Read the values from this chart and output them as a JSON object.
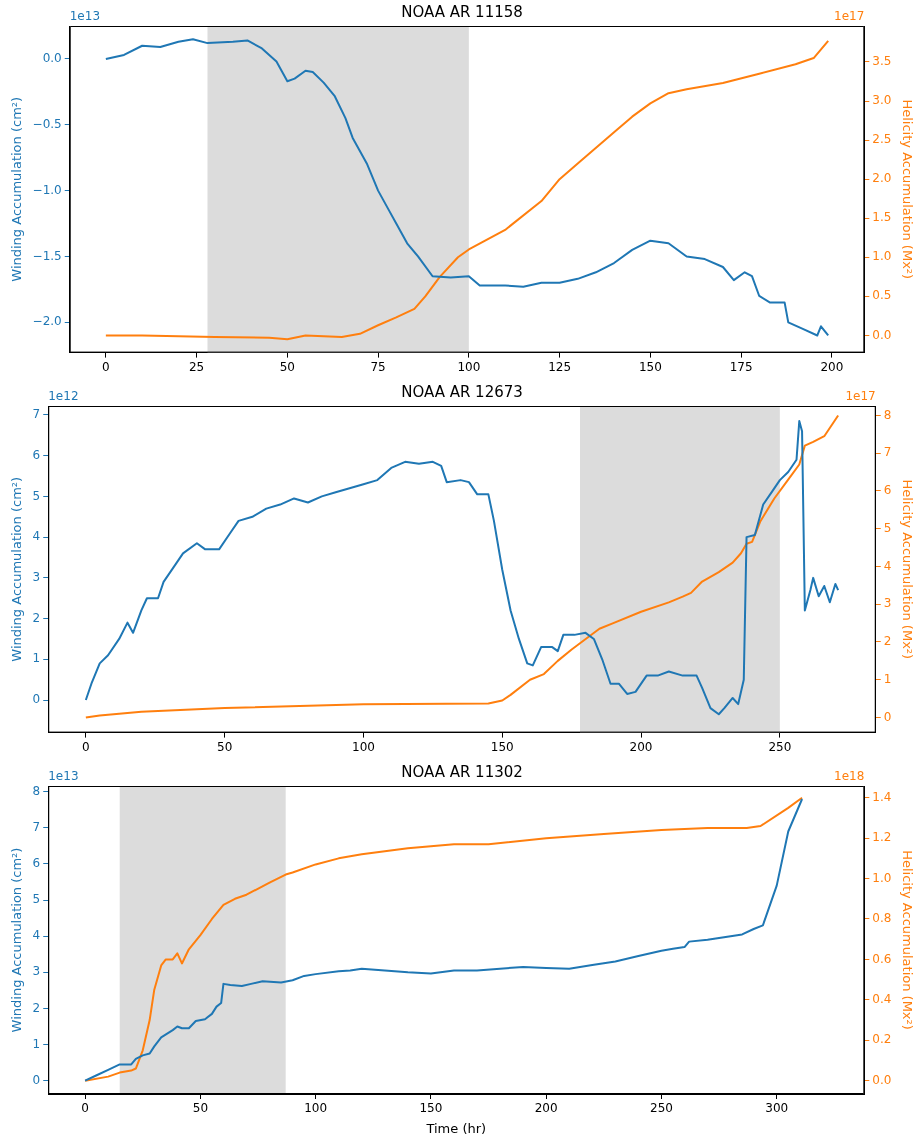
{
  "chart_data": [
    {
      "type": "line",
      "title": "NOAA AR 11158",
      "ylabel": "Winding Accumulation (cm²)",
      "y2label": "Helicity Accumulation (Mx²)",
      "annotations": [
        "1e13",
        "1e17"
      ],
      "marker": "none",
      "xlim": [
        -9.95,
        208.95
      ],
      "xticks": [
        0,
        25,
        50,
        75,
        100,
        125,
        150,
        175,
        200
      ],
      "ylim": [
        -2.23,
        0.25
      ],
      "yticks": [
        {
          "value": -2,
          "label": "−2.0"
        },
        {
          "value": -1.5,
          "label": "−1.5"
        },
        {
          "value": -1,
          "label": "−1.0"
        },
        {
          "value": -0.5,
          "label": "−0.5"
        },
        {
          "value": 0,
          "label": "0.0"
        }
      ],
      "y2lim": [
        -0.22,
        3.96
      ],
      "y2ticks": [
        {
          "value": 0,
          "label": "0.0"
        },
        0.5,
        {
          "value": 1,
          "label": "1.0"
        },
        1.5,
        {
          "value": 2,
          "label": "2.0"
        },
        2.5,
        {
          "value": 3,
          "label": "3.0"
        },
        3.5
      ],
      "bands": [
        {
          "axis": "x",
          "from": 28,
          "to": 100,
          "color": "#dcdcdc"
        }
      ],
      "series": [
        {
          "color": "#1f77b4",
          "x": [
            0,
            5,
            10,
            15,
            20,
            24,
            28,
            35,
            39,
            43,
            47,
            50,
            52,
            55,
            57,
            60,
            63,
            66,
            68,
            72,
            75,
            78,
            80,
            83,
            86,
            90,
            95,
            100,
            103,
            110,
            115,
            120,
            125,
            130,
            135,
            140,
            145,
            150,
            155,
            160,
            165,
            170,
            173,
            176,
            178,
            180,
            183,
            187,
            188,
            192,
            196,
            197,
            199
          ],
          "values": [
            0,
            0.03,
            0.1,
            0.09,
            0.13,
            0.15,
            0.12,
            0.13,
            0.14,
            0.08,
            -0.02,
            -0.17,
            -0.15,
            -0.09,
            -0.1,
            -0.18,
            -0.28,
            -0.45,
            -0.6,
            -0.8,
            -1,
            -1.15,
            -1.25,
            -1.4,
            -1.5,
            -1.65,
            -1.66,
            -1.65,
            -1.72,
            -1.72,
            -1.73,
            -1.7,
            -1.7,
            -1.67,
            -1.62,
            -1.55,
            -1.45,
            -1.38,
            -1.4,
            -1.5,
            -1.52,
            -1.58,
            -1.68,
            -1.62,
            -1.65,
            -1.8,
            -1.85,
            -1.85,
            -2,
            -2.05,
            -2.1,
            -2.03,
            -2.1
          ]
        },
        {
          "color": "#ff7f0e",
          "axis": "y2",
          "x": [
            0,
            10,
            30,
            45,
            50,
            55,
            60,
            65,
            70,
            75,
            80,
            85,
            88,
            92,
            97,
            100,
            110,
            120,
            125,
            130,
            140,
            145,
            150,
            155,
            160,
            170,
            180,
            190,
            195,
            199
          ],
          "values": [
            0,
            0,
            -0.02,
            -0.03,
            -0.05,
            0,
            -0.01,
            -0.02,
            0.02,
            0.13,
            0.23,
            0.34,
            0.5,
            0.75,
            1,
            1.1,
            1.35,
            1.72,
            2,
            2.2,
            2.6,
            2.8,
            2.97,
            3.1,
            3.15,
            3.23,
            3.35,
            3.47,
            3.55,
            3.77
          ]
        }
      ]
    },
    {
      "type": "line",
      "title": "NOAA AR 12673",
      "ylabel": "Winding Accumulation (cm²)",
      "y2label": "Helicity Accumulation (Mx²)",
      "annotations": [
        "1e12",
        "1e17"
      ],
      "marker": "none",
      "xlim": [
        -13.55,
        284.55
      ],
      "xticks": [
        0,
        50,
        100,
        150,
        200,
        250
      ],
      "ylim": [
        -0.8,
        7.22
      ],
      "yticks": [
        0,
        1,
        2,
        3,
        4,
        5,
        6,
        7
      ],
      "y2lim": [
        -0.4,
        8.25
      ],
      "y2ticks": [
        0,
        1,
        2,
        3,
        4,
        5,
        6,
        7,
        8
      ],
      "bands": [
        {
          "axis": "x",
          "from": 178,
          "to": 250,
          "color": "#dcdcdc"
        }
      ],
      "series": [
        {
          "color": "#1f77b4",
          "x": [
            0,
            2,
            5,
            8,
            12,
            15,
            17,
            20,
            22,
            26,
            28,
            32,
            35,
            40,
            43,
            48,
            52,
            55,
            60,
            65,
            70,
            75,
            80,
            85,
            90,
            95,
            100,
            105,
            110,
            115,
            120,
            125,
            128,
            130,
            135,
            138,
            141,
            145,
            147,
            150,
            153,
            156,
            159,
            161,
            164,
            168,
            170,
            172,
            176,
            180,
            183,
            186,
            189,
            192,
            195,
            198,
            202,
            206,
            210,
            215,
            220,
            222,
            225,
            228,
            230,
            233,
            235,
            237,
            238,
            241,
            244,
            247,
            250,
            253,
            256,
            257,
            258,
            259,
            261,
            262,
            264,
            266,
            268,
            270,
            271
          ],
          "values": [
            0,
            0.4,
            0.9,
            1.1,
            1.5,
            1.9,
            1.65,
            2.2,
            2.5,
            2.5,
            2.9,
            3.3,
            3.6,
            3.85,
            3.7,
            3.7,
            4.1,
            4.4,
            4.5,
            4.7,
            4.8,
            4.95,
            4.85,
            5,
            5.1,
            5.2,
            5.3,
            5.4,
            5.7,
            5.85,
            5.8,
            5.85,
            5.75,
            5.35,
            5.4,
            5.35,
            5.05,
            5.05,
            4.4,
            3.2,
            2.2,
            1.5,
            0.9,
            0.85,
            1.3,
            1.3,
            1.2,
            1.6,
            1.6,
            1.65,
            1.5,
            1,
            0.4,
            0.4,
            0.15,
            0.2,
            0.6,
            0.6,
            0.7,
            0.6,
            0.6,
            0.3,
            -0.2,
            -0.35,
            -0.2,
            0.05,
            -0.1,
            0.5,
            4,
            4.05,
            4.8,
            5.1,
            5.4,
            5.6,
            5.9,
            6.85,
            6.6,
            2.2,
            2.7,
            3,
            2.55,
            2.8,
            2.4,
            2.85,
            2.7
          ]
        },
        {
          "color": "#ff7f0e",
          "axis": "y2",
          "x": [
            0,
            5,
            20,
            50,
            100,
            145,
            150,
            153,
            160,
            165,
            170,
            175,
            185,
            190,
            200,
            210,
            215,
            218,
            222,
            228,
            233,
            236,
            238,
            240,
            243,
            248,
            253,
            257,
            259,
            262,
            266,
            271
          ],
          "values": [
            0,
            0.05,
            0.15,
            0.25,
            0.35,
            0.37,
            0.45,
            0.6,
            1,
            1.15,
            1.5,
            1.8,
            2.35,
            2.5,
            2.8,
            3.05,
            3.2,
            3.3,
            3.6,
            3.85,
            4.1,
            4.35,
            4.6,
            4.65,
            5.2,
            5.8,
            6.3,
            6.7,
            7.2,
            7.3,
            7.45,
            8
          ]
        }
      ]
    },
    {
      "type": "line",
      "title": "NOAA AR 11302",
      "xlabel": "Time (hr)",
      "ylabel": "Winding Accumulation (cm²)",
      "y2label": "Helicity Accumulation (Mx²)",
      "annotations": [
        "1e13",
        "1e18"
      ],
      "marker": "none",
      "xlim": [
        -16,
        338
      ],
      "xticks": [
        0,
        50,
        100,
        150,
        200,
        250,
        300
      ],
      "ylim": [
        -0.37,
        8.16
      ],
      "yticks": [
        0,
        1,
        2,
        3,
        4,
        5,
        6,
        7,
        8
      ],
      "y2lim": [
        -0.066,
        1.458
      ],
      "y2ticks": [
        {
          "value": 0,
          "label": "0.0"
        },
        0.2,
        0.4,
        0.6,
        0.8,
        {
          "value": 1,
          "label": "1.0"
        },
        1.2,
        1.4
      ],
      "bands": [
        {
          "axis": "x",
          "from": 15,
          "to": 87,
          "color": "#dcdcdc"
        }
      ],
      "series": [
        {
          "color": "#1f77b4",
          "x": [
            0,
            5,
            10,
            15,
            20,
            22,
            25,
            28,
            30,
            33,
            38,
            40,
            42,
            45,
            48,
            52,
            55,
            57,
            59,
            60,
            63,
            68,
            72,
            77,
            85,
            90,
            95,
            100,
            110,
            115,
            120,
            130,
            140,
            150,
            160,
            170,
            180,
            190,
            200,
            210,
            220,
            230,
            240,
            250,
            255,
            260,
            262,
            270,
            280,
            285,
            290,
            294,
            300,
            305,
            311
          ],
          "values": [
            0,
            0.15,
            0.3,
            0.45,
            0.45,
            0.6,
            0.7,
            0.75,
            0.95,
            1.2,
            1.4,
            1.5,
            1.45,
            1.45,
            1.65,
            1.7,
            1.85,
            2.05,
            2.15,
            2.68,
            2.65,
            2.62,
            2.68,
            2.75,
            2.72,
            2.78,
            2.9,
            2.95,
            3.03,
            3.05,
            3.1,
            3.05,
            3,
            2.97,
            3.05,
            3.05,
            3.1,
            3.15,
            3.12,
            3.1,
            3.2,
            3.3,
            3.45,
            3.6,
            3.65,
            3.7,
            3.85,
            3.9,
            4,
            4.05,
            4.2,
            4.3,
            5.4,
            6.9,
            7.8
          ]
        },
        {
          "color": "#ff7f0e",
          "axis": "y2",
          "x": [
            0,
            10,
            15,
            20,
            22,
            25,
            28,
            30,
            33,
            35,
            38,
            40,
            42,
            45,
            50,
            55,
            60,
            65,
            70,
            80,
            87,
            90,
            100,
            110,
            120,
            140,
            160,
            175,
            200,
            225,
            250,
            270,
            287,
            293,
            305,
            311
          ],
          "values": [
            0,
            0.02,
            0.04,
            0.05,
            0.06,
            0.15,
            0.3,
            0.45,
            0.57,
            0.6,
            0.6,
            0.63,
            0.58,
            0.65,
            0.72,
            0.8,
            0.87,
            0.9,
            0.92,
            0.98,
            1.02,
            1.03,
            1.07,
            1.1,
            1.12,
            1.15,
            1.17,
            1.17,
            1.2,
            1.22,
            1.24,
            1.25,
            1.25,
            1.26,
            1.35,
            1.4
          ]
        }
      ]
    }
  ]
}
